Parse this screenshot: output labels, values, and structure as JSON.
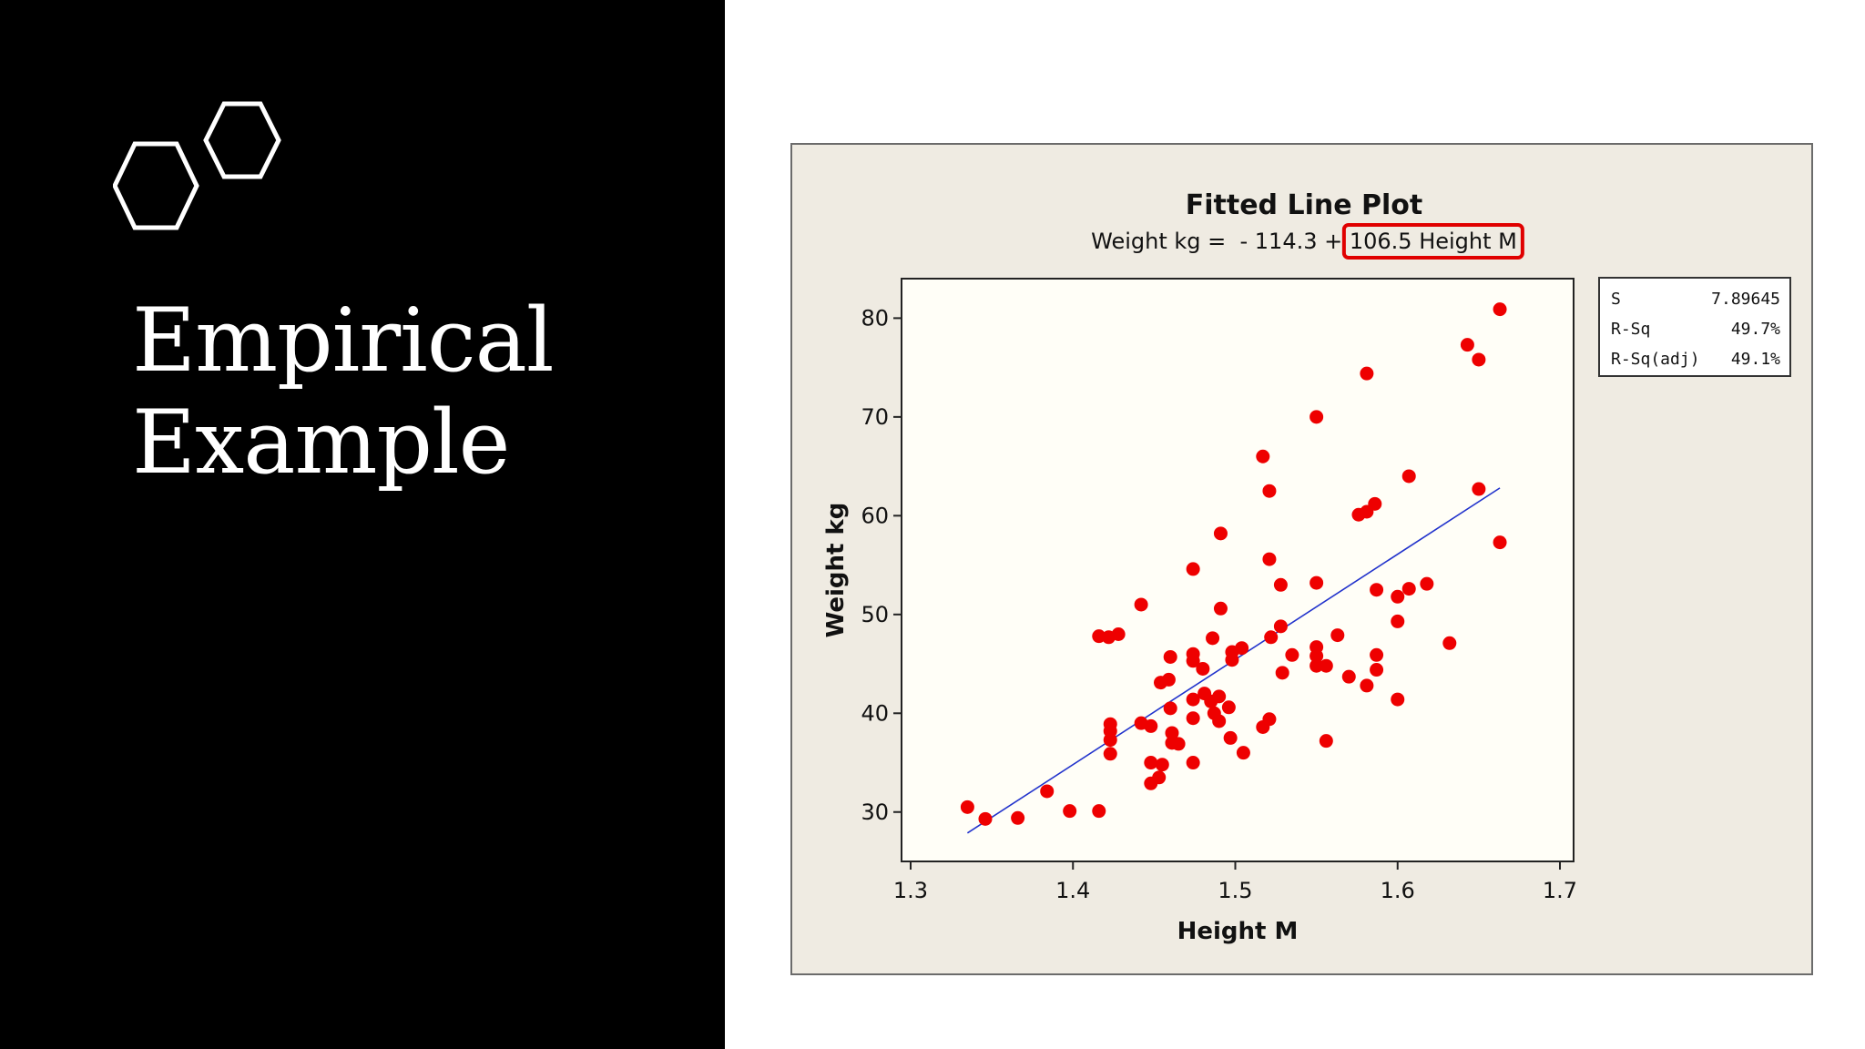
{
  "slide": {
    "title_line1": "Empirical",
    "title_line2": "Example"
  },
  "colors": {
    "panel": "#000000",
    "chart_bg": "#efebe2",
    "plot_bg": "#fffef7",
    "points": "#ee0000",
    "fit_line": "#2233cc",
    "highlight": "#e00000"
  },
  "icons": [
    "hexagon-pair-icon"
  ],
  "chart_data": {
    "type": "scatter",
    "title": "Fitted Line Plot",
    "equation_prefix": "Weight kg =  - 114.3 + ",
    "equation_highlight": "106.5 Height M",
    "xlabel": "Height M",
    "ylabel": "Weight kg",
    "xlim": [
      1.3,
      1.7
    ],
    "ylim": [
      25,
      84
    ],
    "xticks": [
      1.3,
      1.4,
      1.5,
      1.6,
      1.7
    ],
    "yticks": [
      30,
      40,
      50,
      60,
      70,
      80
    ],
    "fit": {
      "intercept": -114.3,
      "slope": 106.5,
      "x_range": [
        1.335,
        1.663
      ]
    },
    "stats": [
      {
        "label": "S",
        "value": "7.89645"
      },
      {
        "label": "R-Sq",
        "value": "49.7%"
      },
      {
        "label": "R-Sq(adj)",
        "value": "49.1%"
      }
    ],
    "points": [
      [
        1.335,
        30.5
      ],
      [
        1.346,
        29.3
      ],
      [
        1.366,
        29.4
      ],
      [
        1.384,
        32.1
      ],
      [
        1.398,
        30.1
      ],
      [
        1.416,
        30.1
      ],
      [
        1.416,
        47.8
      ],
      [
        1.422,
        47.7
      ],
      [
        1.428,
        48.0
      ],
      [
        1.423,
        38.9
      ],
      [
        1.423,
        38.2
      ],
      [
        1.423,
        37.3
      ],
      [
        1.423,
        35.9
      ],
      [
        1.442,
        51.0
      ],
      [
        1.442,
        39.0
      ],
      [
        1.448,
        38.7
      ],
      [
        1.448,
        35.0
      ],
      [
        1.448,
        32.9
      ],
      [
        1.453,
        33.5
      ],
      [
        1.455,
        34.8
      ],
      [
        1.454,
        43.1
      ],
      [
        1.459,
        43.4
      ],
      [
        1.46,
        45.7
      ],
      [
        1.46,
        40.5
      ],
      [
        1.461,
        38.0
      ],
      [
        1.461,
        37.0
      ],
      [
        1.465,
        36.9
      ],
      [
        1.474,
        54.6
      ],
      [
        1.474,
        46.0
      ],
      [
        1.474,
        45.3
      ],
      [
        1.474,
        41.4
      ],
      [
        1.474,
        39.5
      ],
      [
        1.474,
        35.0
      ],
      [
        1.48,
        44.5
      ],
      [
        1.481,
        42.0
      ],
      [
        1.485,
        41.2
      ],
      [
        1.486,
        47.6
      ],
      [
        1.487,
        40.0
      ],
      [
        1.49,
        39.2
      ],
      [
        1.49,
        41.7
      ],
      [
        1.491,
        58.2
      ],
      [
        1.491,
        50.6
      ],
      [
        1.496,
        40.6
      ],
      [
        1.497,
        37.5
      ],
      [
        1.498,
        45.4
      ],
      [
        1.498,
        46.2
      ],
      [
        1.504,
        46.6
      ],
      [
        1.505,
        36.0
      ],
      [
        1.517,
        66.0
      ],
      [
        1.517,
        38.6
      ],
      [
        1.521,
        62.5
      ],
      [
        1.521,
        55.6
      ],
      [
        1.521,
        39.4
      ],
      [
        1.522,
        47.7
      ],
      [
        1.528,
        53.0
      ],
      [
        1.528,
        48.8
      ],
      [
        1.529,
        44.1
      ],
      [
        1.535,
        45.9
      ],
      [
        1.55,
        70.0
      ],
      [
        1.55,
        53.2
      ],
      [
        1.55,
        46.7
      ],
      [
        1.55,
        45.8
      ],
      [
        1.55,
        44.8
      ],
      [
        1.556,
        44.8
      ],
      [
        1.556,
        37.2
      ],
      [
        1.563,
        47.9
      ],
      [
        1.57,
        43.7
      ],
      [
        1.576,
        60.1
      ],
      [
        1.581,
        74.4
      ],
      [
        1.581,
        60.4
      ],
      [
        1.581,
        42.8
      ],
      [
        1.586,
        61.2
      ],
      [
        1.587,
        52.5
      ],
      [
        1.587,
        45.9
      ],
      [
        1.587,
        44.4
      ],
      [
        1.6,
        51.8
      ],
      [
        1.6,
        49.3
      ],
      [
        1.6,
        41.4
      ],
      [
        1.607,
        64.0
      ],
      [
        1.607,
        52.6
      ],
      [
        1.618,
        53.1
      ],
      [
        1.632,
        47.1
      ],
      [
        1.643,
        77.3
      ],
      [
        1.65,
        75.8
      ],
      [
        1.65,
        62.7
      ],
      [
        1.663,
        80.9
      ],
      [
        1.663,
        57.3
      ]
    ]
  }
}
